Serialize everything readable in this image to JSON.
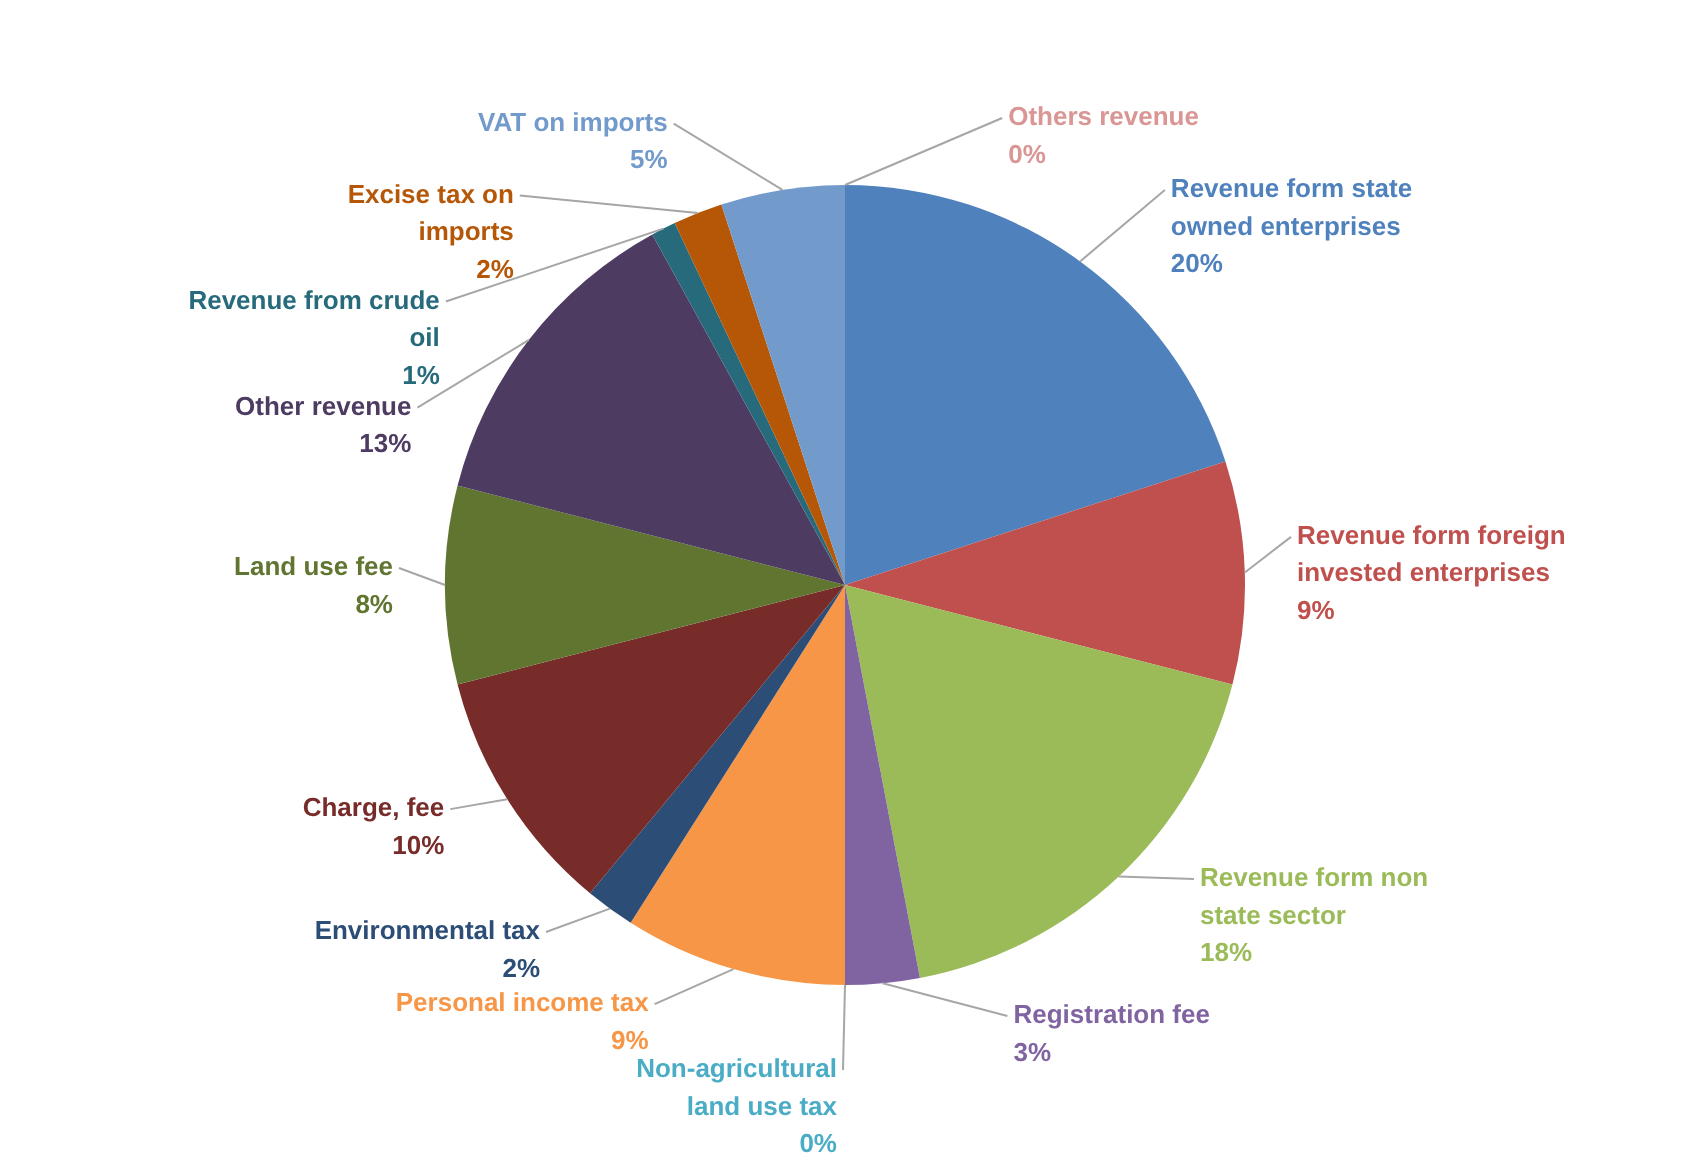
{
  "chart_data": {
    "type": "pie",
    "categories": [
      "Revenue form state owned enterprises",
      "Revenue form foreign invested enterprises",
      "Revenue form non state sector",
      "Registration fee",
      "Non-agricultural land use tax",
      "Personal income tax",
      "Environmental tax",
      "Charge, fee",
      "Land use fee",
      "Other revenue",
      "Revenue from crude oil",
      "Excise tax on imports",
      "VAT on imports",
      "Others revenue"
    ],
    "values": [
      20,
      9,
      18,
      3,
      0,
      9,
      2,
      10,
      8,
      13,
      1,
      2,
      5,
      0
    ],
    "value_labels": [
      "20%",
      "9%",
      "18%",
      "3%",
      "0%",
      "9%",
      "2%",
      "10%",
      "8%",
      "13%",
      "1%",
      "2%",
      "5%",
      "0%"
    ],
    "colors": [
      "#4f81bd",
      "#c0504d",
      "#9bbb59",
      "#8064a2",
      "#4bacc6",
      "#f79646",
      "#2c4d75",
      "#772c2a",
      "#5f7530",
      "#4d3b62",
      "#276a7c",
      "#b65708",
      "#729aca",
      "#d99694"
    ]
  }
}
